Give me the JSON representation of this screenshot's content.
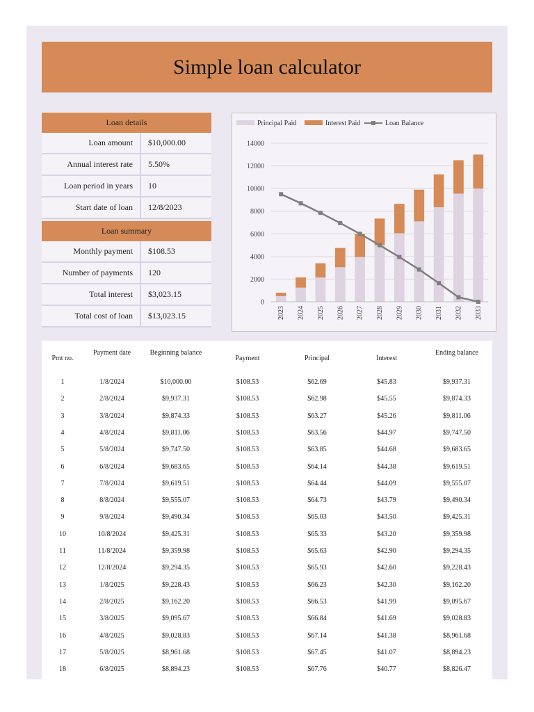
{
  "title": "Simple loan calculator",
  "loan_details": {
    "header": "Loan details",
    "rows": [
      {
        "label": "Loan amount",
        "value": "$10,000.00"
      },
      {
        "label": "Annual interest rate",
        "value": "5.50%"
      },
      {
        "label": "Loan period in years",
        "value": "10"
      },
      {
        "label": "Start date of loan",
        "value": "12/8/2023"
      }
    ]
  },
  "loan_summary": {
    "header": "Loan summary",
    "rows": [
      {
        "label": "Monthly payment",
        "value": "$108.53"
      },
      {
        "label": "Number of payments",
        "value": "120"
      },
      {
        "label": "Total interest",
        "value": "$3,023.15"
      },
      {
        "label": "Total cost of loan",
        "value": "$13,023.15"
      }
    ]
  },
  "colors": {
    "accent": "#d58a57",
    "principal": "#ddd3e1",
    "balance_line": "#7f7f7f",
    "sheet_bg": "#ece8f2"
  },
  "chart_data": {
    "type": "bar",
    "categories": [
      "2023",
      "2024",
      "2025",
      "2026",
      "2027",
      "2028",
      "2029",
      "2030",
      "2031",
      "2032",
      "2033"
    ],
    "series": [
      {
        "name": "Principal Paid",
        "kind": "stacked-bar",
        "values": [
          500,
          1250,
          2150,
          3050,
          3950,
          5000,
          6050,
          7100,
          8350,
          9550,
          10000
        ]
      },
      {
        "name": "Interest Paid",
        "kind": "stacked-bar",
        "values": [
          300,
          900,
          1250,
          1700,
          2050,
          2350,
          2600,
          2800,
          2900,
          2950,
          3000
        ]
      },
      {
        "name": "Loan Balance",
        "kind": "line",
        "values": [
          9500,
          8700,
          7850,
          6950,
          6000,
          5000,
          3950,
          2850,
          1650,
          400,
          0
        ]
      }
    ],
    "ylim": [
      0,
      14000
    ],
    "yticks": [
      "0",
      "2000",
      "4000",
      "6000",
      "8000",
      "10000",
      "12000",
      "14000"
    ],
    "legend": "top-left",
    "grid": true
  },
  "schedule": {
    "headers": [
      "Pmt no.",
      "Payment date",
      "Beginning balance",
      "Payment",
      "Principal",
      "Interest",
      "Ending balance"
    ],
    "rows": [
      [
        "1",
        "1/8/2024",
        "$10,000.00",
        "$108.53",
        "$62.69",
        "$45.83",
        "$9,937.31"
      ],
      [
        "2",
        "2/8/2024",
        "$9,937.31",
        "$108.53",
        "$62.98",
        "$45.55",
        "$9,874.33"
      ],
      [
        "3",
        "3/8/2024",
        "$9,874.33",
        "$108.53",
        "$63.27",
        "$45.26",
        "$9,811.06"
      ],
      [
        "4",
        "4/8/2024",
        "$9,811.06",
        "$108.53",
        "$63.56",
        "$44.97",
        "$9,747.50"
      ],
      [
        "5",
        "5/8/2024",
        "$9,747.50",
        "$108.53",
        "$63.85",
        "$44.68",
        "$9,683.65"
      ],
      [
        "6",
        "6/8/2024",
        "$9,683.65",
        "$108.53",
        "$64.14",
        "$44.38",
        "$9,619.51"
      ],
      [
        "7",
        "7/8/2024",
        "$9,619.51",
        "$108.53",
        "$64.44",
        "$44.09",
        "$9,555.07"
      ],
      [
        "8",
        "8/8/2024",
        "$9,555.07",
        "$108.53",
        "$64.73",
        "$43.79",
        "$9,490.34"
      ],
      [
        "9",
        "9/8/2024",
        "$9,490.34",
        "$108.53",
        "$65.03",
        "$43.50",
        "$9,425.31"
      ],
      [
        "10",
        "10/8/2024",
        "$9,425.31",
        "$108.53",
        "$65.33",
        "$43.20",
        "$9,359.98"
      ],
      [
        "11",
        "11/8/2024",
        "$9,359.98",
        "$108.53",
        "$65.63",
        "$42.90",
        "$9,294.35"
      ],
      [
        "12",
        "12/8/2024",
        "$9,294.35",
        "$108.53",
        "$65.93",
        "$42.60",
        "$9,228.43"
      ],
      [
        "13",
        "1/8/2025",
        "$9,228.43",
        "$108.53",
        "$66.23",
        "$42.30",
        "$9,162.20"
      ],
      [
        "14",
        "2/8/2025",
        "$9,162.20",
        "$108.53",
        "$66.53",
        "$41.99",
        "$9,095.67"
      ],
      [
        "15",
        "3/8/2025",
        "$9,095.67",
        "$108.53",
        "$66.84",
        "$41.69",
        "$9,028.83"
      ],
      [
        "16",
        "4/8/2025",
        "$9,028.83",
        "$108.53",
        "$67.14",
        "$41.38",
        "$8,961.68"
      ],
      [
        "17",
        "5/8/2025",
        "$8,961.68",
        "$108.53",
        "$67.45",
        "$41.07",
        "$8,894.23"
      ],
      [
        "18",
        "6/8/2025",
        "$8,894.23",
        "$108.53",
        "$67.76",
        "$40.77",
        "$8,826.47"
      ]
    ]
  }
}
